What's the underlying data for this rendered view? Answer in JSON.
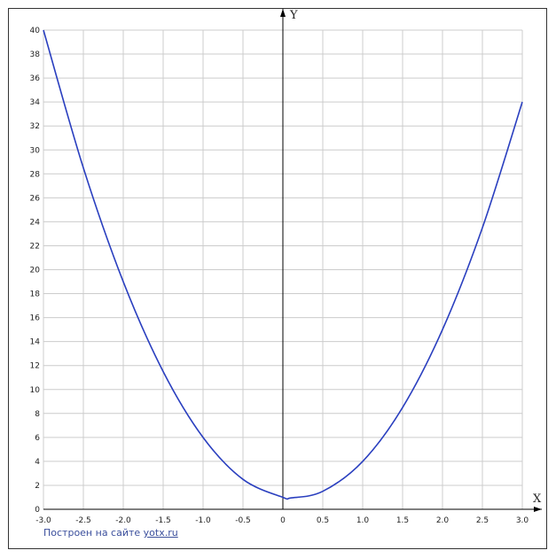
{
  "chart_data": {
    "type": "line",
    "title": "",
    "xlabel": "X",
    "ylabel": "Y",
    "xlim": [
      -3.0,
      3.0
    ],
    "ylim": [
      0,
      40
    ],
    "grid": true,
    "x_ticks": [
      "-3.0",
      "-2.5",
      "-2.0",
      "-1.5",
      "-1.0",
      "-0.5",
      "0",
      "0.5",
      "1.0",
      "1.5",
      "2.0",
      "2.5",
      "3.0"
    ],
    "y_ticks": [
      "0",
      "2",
      "4",
      "6",
      "8",
      "10",
      "12",
      "14",
      "16",
      "18",
      "20",
      "22",
      "24",
      "26",
      "28",
      "30",
      "32",
      "34",
      "36",
      "38",
      "40"
    ],
    "series": [
      {
        "color": "#2a3fbf",
        "x": [
          -3.0,
          -2.5,
          -2.0,
          -1.5,
          -1.0,
          -0.5,
          0.0,
          0.1,
          0.5,
          1.0,
          1.5,
          2.0,
          2.5,
          3.0
        ],
        "values": [
          40,
          28.5,
          19,
          11.5,
          6,
          2.5,
          1,
          0.95,
          1.5,
          4,
          8.5,
          15,
          23.5,
          34
        ]
      }
    ]
  },
  "footer": {
    "text": "Построен на сайте",
    "link": "yotx.ru"
  },
  "colors": {
    "grid": "#cccccc",
    "axis": "#000000",
    "curve": "#2a3fbf",
    "footer": "#3a4e9c"
  }
}
